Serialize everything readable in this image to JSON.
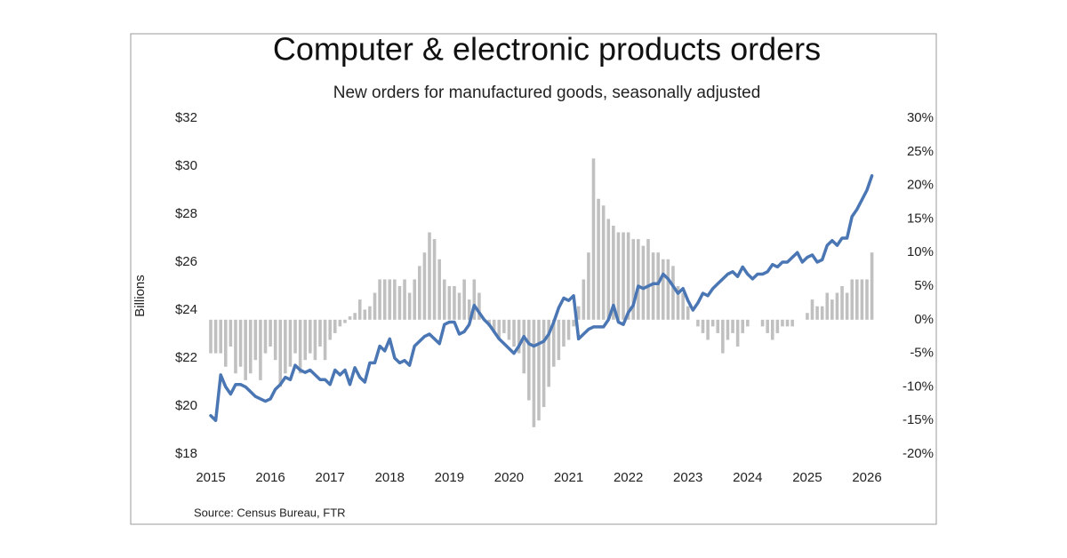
{
  "chart_data": {
    "type": "combo",
    "title": "Computer & electronic products orders",
    "subtitle": "New orders for manufactured goods, seasonally adjusted",
    "y_label": "Billions",
    "source": "Source: Census Bureau, FTR",
    "categories": [
      "2015",
      null,
      null,
      null,
      null,
      null,
      null,
      null,
      null,
      null,
      null,
      null,
      "2016",
      null,
      null,
      null,
      null,
      null,
      null,
      null,
      null,
      null,
      null,
      null,
      "2017",
      null,
      null,
      null,
      null,
      null,
      null,
      null,
      null,
      null,
      null,
      null,
      "2018",
      null,
      null,
      null,
      null,
      null,
      null,
      null,
      null,
      null,
      null,
      null,
      "2019",
      null,
      null,
      null,
      null,
      null,
      null,
      null,
      null,
      null,
      null,
      null,
      "2020",
      null,
      null,
      null,
      null,
      null,
      null,
      null,
      null,
      null,
      null,
      null,
      "2021",
      null,
      null,
      null,
      null,
      null,
      null,
      null,
      null,
      null,
      null,
      null,
      "2022",
      null,
      null,
      null,
      null,
      null,
      null,
      null,
      null,
      null,
      null,
      null,
      "2023",
      null,
      null,
      null,
      null,
      null,
      null,
      null,
      null,
      null,
      null,
      null,
      "2024",
      null,
      null,
      null,
      null,
      null,
      null,
      null,
      null,
      null,
      null,
      null,
      "2025",
      null,
      null,
      null,
      null,
      null,
      null,
      null,
      null,
      null,
      null,
      null,
      "2026",
      null
    ],
    "ylim": [
      18,
      32
    ],
    "yticks": [
      {
        "value": 18,
        "label": "$18"
      },
      {
        "value": 20,
        "label": "$20"
      },
      {
        "value": 22,
        "label": "$22"
      },
      {
        "value": 24,
        "label": "$24"
      },
      {
        "value": 26,
        "label": "$26"
      },
      {
        "value": 28,
        "label": "$28"
      },
      {
        "value": 30,
        "label": "$30"
      },
      {
        "value": 32,
        "label": "$32"
      }
    ],
    "y2lim": [
      -20,
      30
    ],
    "y2ticks": [
      {
        "value": -20,
        "label": "-20%"
      },
      {
        "value": -15,
        "label": "-15%"
      },
      {
        "value": -10,
        "label": "-10%"
      },
      {
        "value": -5,
        "label": "-5%"
      },
      {
        "value": 0,
        "label": "0%"
      },
      {
        "value": 5,
        "label": "5%"
      },
      {
        "value": 10,
        "label": "10%"
      },
      {
        "value": 15,
        "label": "15%"
      },
      {
        "value": 20,
        "label": "20%"
      },
      {
        "value": 25,
        "label": "25%"
      },
      {
        "value": 30,
        "label": "30%"
      }
    ],
    "series": [
      {
        "type": "bar",
        "axis": "y2",
        "color": "#c0c0c0",
        "values": [
          -5,
          -5,
          -5,
          -7,
          -4,
          -8,
          -7,
          -9,
          -8,
          -6,
          -9,
          -5,
          -4,
          -6,
          -10,
          -8,
          -7,
          -5,
          -8,
          -6,
          -5,
          -6,
          -4,
          -6,
          -3,
          -2,
          -1,
          -0.5,
          0.5,
          1,
          3,
          1.5,
          2,
          4,
          6,
          6,
          6,
          6,
          5,
          6,
          4,
          6,
          8,
          10,
          13,
          12,
          9,
          6,
          5,
          5,
          4,
          6,
          3,
          6,
          4,
          0,
          -1,
          -2,
          -3,
          -2,
          -3,
          -4,
          -5,
          -8,
          -12,
          -16,
          -15,
          -13,
          -10,
          -7,
          -6,
          -4,
          -3,
          -1,
          2,
          6,
          10,
          24,
          18,
          17,
          15,
          14,
          13,
          13,
          13,
          12,
          12,
          11,
          12,
          10,
          10,
          9,
          9,
          8,
          5,
          4,
          2,
          0,
          -1,
          -2,
          -3,
          -1,
          -2,
          -5,
          -3,
          -2,
          -4,
          -2,
          -1,
          0,
          0,
          -1,
          -2,
          -3,
          -2,
          -1,
          -1,
          -1,
          0,
          0,
          1,
          3,
          2,
          2,
          4,
          3,
          4,
          5,
          4,
          6,
          6,
          6,
          6,
          10
        ]
      },
      {
        "type": "line",
        "axis": "y",
        "color": "#4a76b4",
        "values": [
          19.6,
          19.4,
          21.3,
          20.8,
          20.5,
          20.9,
          20.9,
          20.8,
          20.6,
          20.4,
          20.3,
          20.2,
          20.3,
          20.7,
          20.9,
          21.2,
          21.1,
          21.7,
          21.5,
          21.4,
          21.5,
          21.3,
          21.1,
          21.1,
          20.9,
          21.5,
          21.3,
          21.5,
          20.9,
          21.6,
          21.2,
          21.0,
          21.8,
          21.8,
          22.5,
          22.3,
          22.8,
          22.0,
          21.8,
          21.9,
          21.7,
          22.5,
          22.7,
          22.9,
          23.0,
          22.8,
          22.6,
          23.4,
          23.5,
          23.5,
          23.0,
          23.1,
          23.4,
          24.2,
          23.9,
          23.6,
          23.4,
          23.1,
          22.8,
          22.6,
          22.4,
          22.2,
          22.5,
          22.9,
          22.6,
          22.5,
          22.6,
          22.7,
          23.0,
          23.5,
          24.1,
          24.5,
          24.4,
          24.6,
          22.8,
          23.0,
          23.2,
          23.3,
          23.3,
          23.3,
          23.6,
          24.2,
          23.5,
          23.4,
          23.9,
          24.2,
          25.0,
          24.9,
          25.0,
          25.1,
          25.1,
          25.5,
          25.3,
          25.0,
          24.7,
          24.9,
          24.4,
          24.0,
          24.3,
          24.7,
          24.6,
          24.9,
          25.1,
          25.3,
          25.5,
          25.6,
          25.4,
          25.8,
          25.5,
          25.3,
          25.5,
          25.5,
          25.6,
          25.9,
          25.8,
          26.0,
          26.0,
          26.2,
          26.4,
          26.0,
          26.2,
          26.3,
          26.0,
          26.1,
          26.7,
          26.9,
          26.7,
          27.0,
          27.0,
          27.9,
          28.2,
          28.6,
          29.0,
          29.6
        ]
      }
    ]
  }
}
